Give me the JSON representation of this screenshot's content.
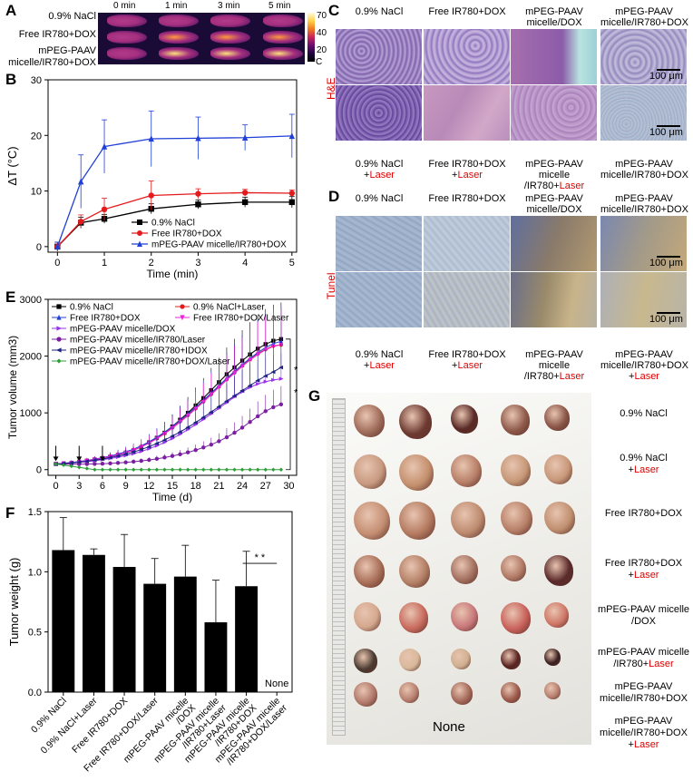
{
  "panels": {
    "A": "A",
    "B": "B",
    "C": "C",
    "D": "D",
    "E": "E",
    "F": "F",
    "G": "G"
  },
  "panelA": {
    "time_labels": [
      "0 min",
      "1 min",
      "3 min",
      "5 min"
    ],
    "row_labels": [
      "0.9% NaCl",
      "Free IR780+DOX",
      "mPEG-PAAV\nmicelle/IR780+DOX"
    ],
    "scale_ticks": [
      "70",
      "40",
      "20"
    ],
    "scale_unit": "°C"
  },
  "panelC": {
    "top_labels": [
      "0.9% NaCl",
      "Free IR780+DOX",
      "mPEG-PAAV\nmicelle/DOX",
      "mPEG-PAAV\nmicelle/IR780+DOX"
    ],
    "bottom_labels": [
      {
        "text": "0.9% NaCl\n+",
        "red": "Laser"
      },
      {
        "text": "Free IR780+DOX\n+",
        "red": "Laser"
      },
      {
        "text": "mPEG-PAAV\nmicelle\n/IR780+",
        "red": "Laser"
      },
      {
        "text": "mPEG-PAAV\nmicelle/IR780+DOX\n",
        "red": ""
      }
    ],
    "stain_label": "H&E",
    "scale_text": "100 μm"
  },
  "panelD": {
    "top_labels": [
      "0.9% NaCl",
      "Free IR780+DOX",
      "mPEG-PAAV\nmicelle/DOX",
      "mPEG-PAAV\nmicelle/IR780+DOX"
    ],
    "bottom_labels": [
      {
        "text": "0.9% NaCl\n+",
        "red": "Laser"
      },
      {
        "text": "Free IR780+DOX\n+",
        "red": "Laser"
      },
      {
        "text": "mPEG-PAAV\nmicelle\n/IR780+",
        "red": "Laser"
      },
      {
        "text": "mPEG-PAAV\nmicelle/IR780+DOX\n+",
        "red": "Laser"
      }
    ],
    "stain_label": "Tunel",
    "scale_text": "100 μm"
  },
  "panelG": {
    "row_labels": [
      {
        "text": "0.9% NaCl",
        "red": ""
      },
      {
        "text": "0.9% NaCl\n+",
        "red": "Laser"
      },
      {
        "text": "Free IR780+DOX",
        "red": ""
      },
      {
        "text": "Free IR780+DOX\n+",
        "red": "Laser"
      },
      {
        "text": "mPEG-PAAV micelle\n/DOX",
        "red": ""
      },
      {
        "text": "mPEG-PAAV micelle\n/IR780+",
        "red": "Laser"
      },
      {
        "text": "mPEG-PAAV\nmicelle/IR780+DOX",
        "red": ""
      },
      {
        "text": "mPEG-PAAV\nmicelle/IR780+DOX\n+",
        "red": "Laser"
      }
    ],
    "none_text": "None"
  },
  "chart_data": [
    {
      "id": "B",
      "type": "line",
      "xlabel": "Time (min)",
      "ylabel": "ΔT (°C)",
      "xlim": [
        -0.2,
        5.1
      ],
      "ylim": [
        -1,
        30
      ],
      "xticks": [
        0,
        1,
        2,
        3,
        4,
        5
      ],
      "yticks": [
        0,
        10,
        20,
        30
      ],
      "x": [
        0,
        0.5,
        1,
        2,
        3,
        4,
        5
      ],
      "legend_position": "bottom-right",
      "series": [
        {
          "name": "0.9% NaCl",
          "color": "#000000",
          "marker": "square",
          "values": [
            0,
            4.3,
            5.0,
            6.8,
            7.6,
            8.0,
            8.0
          ],
          "err": [
            0.8,
            1.0,
            0.8,
            0.9,
            0.8,
            0.9,
            1.0
          ]
        },
        {
          "name": "Free IR780+DOX",
          "color": "#e41a1c",
          "marker": "circle",
          "values": [
            0,
            4.5,
            6.7,
            9.2,
            9.5,
            9.7,
            9.6
          ],
          "err": [
            0.8,
            1.2,
            2.0,
            2.6,
            0.9,
            0.6,
            0.6
          ]
        },
        {
          "name": "mPEG-PAAV micelle/IR780+DOX",
          "color": "#1f3fd6",
          "marker": "triangle",
          "values": [
            0,
            11.7,
            18.0,
            19.4,
            19.5,
            19.6,
            19.9
          ],
          "err": [
            0.8,
            4.8,
            4.8,
            5.0,
            3.8,
            2.3,
            3.9
          ]
        }
      ]
    },
    {
      "id": "E",
      "type": "line",
      "xlabel": "Time (d)",
      "ylabel": "Tumor volume (mm3)",
      "xlim": [
        -1,
        31
      ],
      "ylim": [
        -100,
        3000
      ],
      "xticks": [
        0,
        3,
        6,
        9,
        12,
        15,
        18,
        21,
        24,
        27,
        30
      ],
      "yticks": [
        0,
        1000,
        2000,
        3000
      ],
      "x": [
        0,
        1,
        2,
        3,
        4,
        5,
        6,
        7,
        8,
        9,
        10,
        11,
        12,
        13,
        14,
        15,
        16,
        17,
        18,
        19,
        20,
        21,
        22,
        23,
        24,
        25,
        26,
        27,
        28,
        29
      ],
      "arrows_at": [
        0,
        3,
        6
      ],
      "significance": [
        "*",
        "*"
      ],
      "legend_position": "top-left",
      "series": [
        {
          "name": "0.9% NaCl",
          "color": "#000000",
          "marker": "square",
          "values": [
            100,
            110,
            120,
            140,
            160,
            180,
            200,
            230,
            260,
            300,
            340,
            400,
            480,
            560,
            650,
            760,
            880,
            1000,
            1130,
            1260,
            1400,
            1540,
            1680,
            1800,
            1920,
            2030,
            2130,
            2210,
            2270,
            2300
          ]
        },
        {
          "name": "0.9% NaCl+Laser",
          "color": "#e41a1c",
          "marker": "circle",
          "values": [
            100,
            112,
            124,
            140,
            160,
            182,
            205,
            232,
            264,
            300,
            345,
            400,
            470,
            550,
            640,
            740,
            850,
            960,
            1080,
            1200,
            1330,
            1460,
            1590,
            1710,
            1830,
            1940,
            2040,
            2120,
            2180,
            2200
          ]
        },
        {
          "name": "Free IR780+DOX",
          "color": "#1f3fd6",
          "marker": "triangle",
          "values": [
            100,
            112,
            125,
            142,
            162,
            185,
            210,
            240,
            275,
            315,
            360,
            420,
            490,
            570,
            660,
            760,
            870,
            980,
            1100,
            1220,
            1350,
            1480,
            1610,
            1730,
            1850,
            1960,
            2060,
            2150,
            2220,
            2260
          ]
        },
        {
          "name": "Free IR780+DOX/Laser",
          "color": "#ee22dd",
          "marker": "triangle-down",
          "values": [
            100,
            110,
            120,
            138,
            158,
            180,
            204,
            230,
            262,
            300,
            345,
            400,
            468,
            545,
            632,
            730,
            838,
            950,
            1070,
            1190,
            1320,
            1450,
            1580,
            1700,
            1820,
            1930,
            2030,
            2110,
            2170,
            2200
          ]
        },
        {
          "name": "mPEG-PAAV micelle/DOX",
          "color": "#9933ee",
          "marker": "triangle-right",
          "values": [
            100,
            108,
            116,
            128,
            142,
            158,
            176,
            196,
            220,
            248,
            280,
            320,
            368,
            420,
            480,
            548,
            624,
            706,
            794,
            886,
            982,
            1080,
            1180,
            1280,
            1370,
            1450,
            1510,
            1550,
            1580,
            1600
          ]
        },
        {
          "name": "mPEG-PAAV micelle/IR780/Laser",
          "color": "#7b1fa2",
          "marker": "circle",
          "values": [
            100,
            98,
            96,
            96,
            98,
            100,
            104,
            110,
            118,
            128,
            140,
            154,
            170,
            190,
            214,
            240,
            270,
            304,
            344,
            390,
            440,
            500,
            570,
            650,
            740,
            840,
            940,
            1030,
            1100,
            1150
          ]
        },
        {
          "name": "mPEG-PAAV micelle/IR780+IDOX",
          "color": "#1a237e",
          "marker": "triangle-left",
          "values": [
            100,
            108,
            118,
            132,
            148,
            166,
            188,
            212,
            240,
            272,
            310,
            354,
            404,
            460,
            522,
            590,
            664,
            744,
            830,
            920,
            1014,
            1110,
            1206,
            1300,
            1390,
            1480,
            1570,
            1650,
            1720,
            1800
          ]
        },
        {
          "name": "mPEG-PAAV micelle/IR780+DOX/Laser",
          "color": "#2e9e3a",
          "marker": "diamond",
          "values": [
            100,
            80,
            60,
            40,
            20,
            0,
            0,
            0,
            0,
            0,
            0,
            0,
            0,
            0,
            0,
            0,
            0,
            0,
            0,
            0,
            0,
            0,
            0,
            0,
            0,
            0,
            0,
            0,
            0,
            0
          ]
        }
      ]
    },
    {
      "id": "F",
      "type": "bar",
      "ylabel": "Tumor weight (g)",
      "ylim": [
        0,
        1.5
      ],
      "yticks": [
        0.0,
        0.5,
        1.0,
        1.5
      ],
      "categories": [
        "0.9% NaCl",
        "0.9% NaCl+Laser",
        "Free IR780+DOX",
        "Free IR780+DOX/Laser",
        "mPEG-PAAV micelle\n/DOX",
        "mPEG-PAAV micelle\n/IR780+Laser",
        "mPEG-PAAV micelle\n/IR780+DOX",
        "mPEG-PAAV micelle\n/IR780+DOX/Laser"
      ],
      "values": [
        1.18,
        1.14,
        1.04,
        0.9,
        0.96,
        0.58,
        0.88,
        0
      ],
      "err": [
        0.27,
        0.05,
        0.27,
        0.21,
        0.26,
        0.35,
        0.29,
        0
      ],
      "none_label": "None",
      "significance": "* *"
    }
  ]
}
